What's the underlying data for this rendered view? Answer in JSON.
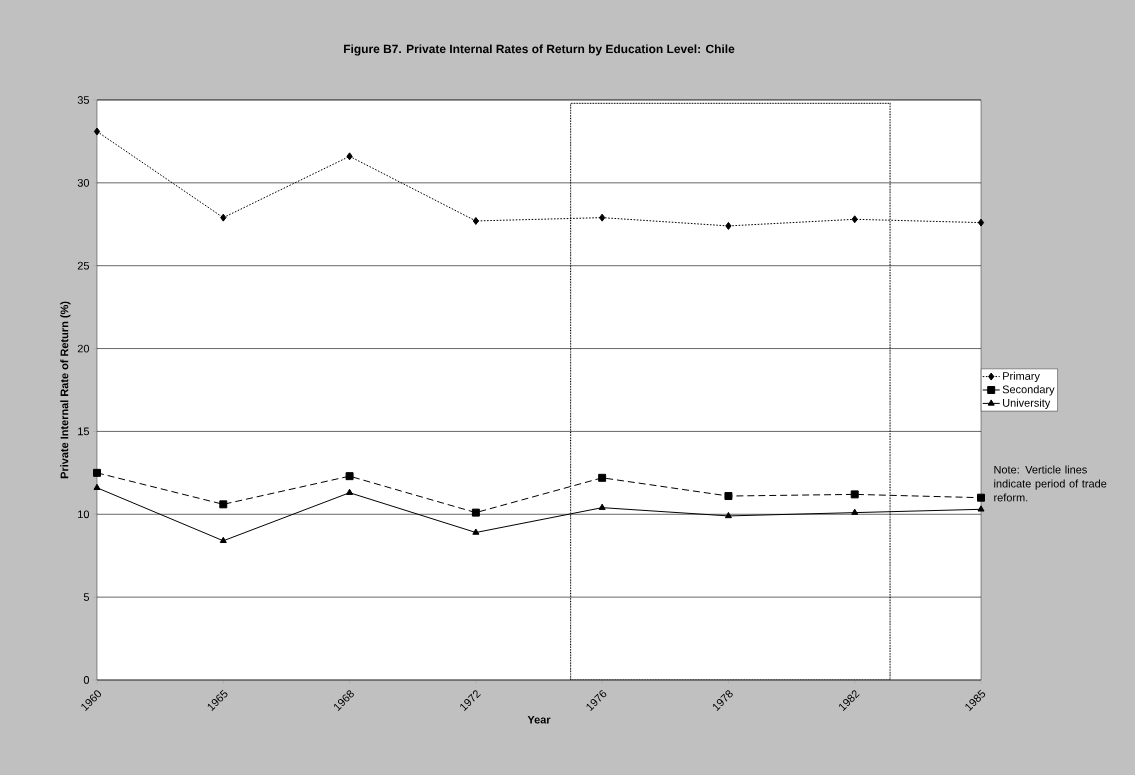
{
  "chart_data": {
    "type": "line",
    "title": "Figure B7.  Private Internal Rates of Return by Education Level: Chile",
    "xlabel": "Year",
    "ylabel": "Private Internal Rate of Return (%)",
    "categories": [
      "1960",
      "1965",
      "1968",
      "1972",
      "1976",
      "1978",
      "1982",
      "1985"
    ],
    "series": [
      {
        "name": "Primary",
        "color": "#000000",
        "marker": "diamond",
        "line_style": "dotted",
        "values": [
          33.1,
          27.9,
          31.6,
          27.7,
          27.9,
          27.4,
          27.8,
          27.6
        ]
      },
      {
        "name": "Secondary",
        "color": "#000000",
        "marker": "square",
        "line_style": "dashed",
        "values": [
          12.5,
          10.6,
          12.3,
          10.1,
          12.2,
          11.1,
          11.2,
          11.0
        ]
      },
      {
        "name": "University",
        "color": "#000000",
        "marker": "triangle",
        "line_style": "solid",
        "values": [
          11.6,
          8.4,
          11.3,
          8.9,
          10.4,
          9.9,
          10.1,
          10.3
        ]
      }
    ],
    "ylim": [
      0,
      35
    ],
    "yticks": [
      0,
      5,
      10,
      15,
      20,
      25,
      30,
      35
    ],
    "grid": "y",
    "legend": "right",
    "annotations": [
      "Note: Verticle lines indicate period of trade reform."
    ]
  }
}
